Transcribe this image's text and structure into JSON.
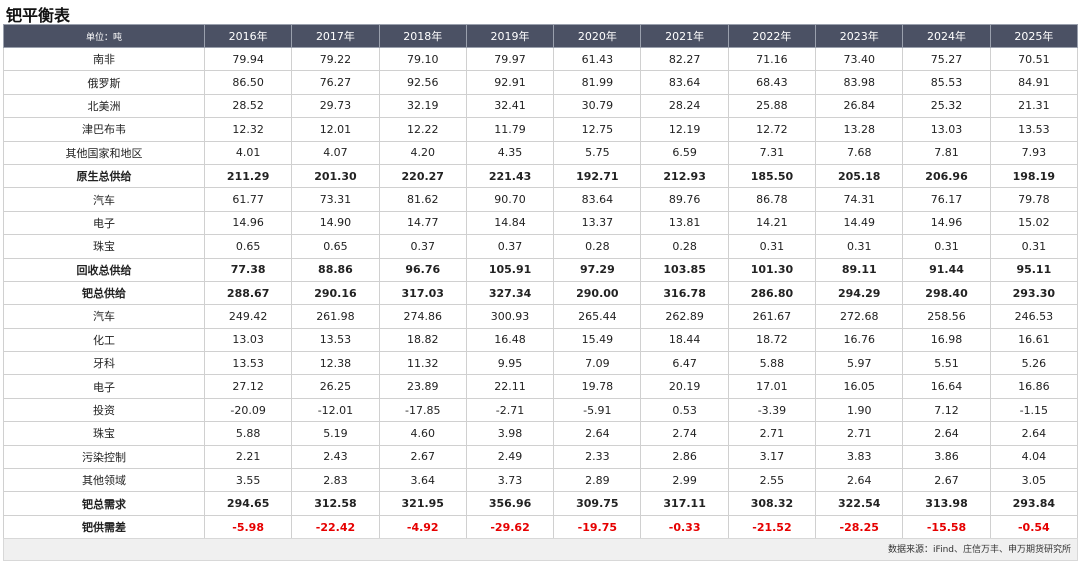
{
  "header": {
    "title": "钯平衡表"
  },
  "table": {
    "header": [
      "单位：吨",
      "2016年",
      "2017年",
      "2018年",
      "2019年",
      "2020年",
      "2021年",
      "2022年",
      "2023年",
      "2024年",
      "2025年"
    ],
    "rows": [
      {
        "label": "南非",
        "values": [
          "79.94",
          "79.22",
          "79.10",
          "79.97",
          "61.43",
          "82.27",
          "71.16",
          "73.40",
          "75.27",
          "70.51"
        ]
      },
      {
        "label": "俄罗斯",
        "values": [
          "86.50",
          "76.27",
          "92.56",
          "92.91",
          "81.99",
          "83.64",
          "68.43",
          "83.98",
          "85.53",
          "84.91"
        ]
      },
      {
        "label": "北美洲",
        "values": [
          "28.52",
          "29.73",
          "32.19",
          "32.41",
          "30.79",
          "28.24",
          "25.88",
          "26.84",
          "25.32",
          "21.31"
        ]
      },
      {
        "label": "津巴布韦",
        "values": [
          "12.32",
          "12.01",
          "12.22",
          "11.79",
          "12.75",
          "12.19",
          "12.72",
          "13.28",
          "13.03",
          "13.53"
        ]
      },
      {
        "label": "其他国家和地区",
        "values": [
          "4.01",
          "4.07",
          "4.20",
          "4.35",
          "5.75",
          "6.59",
          "7.31",
          "7.68",
          "7.81",
          "7.93"
        ]
      },
      {
        "label": "原生总供给",
        "bold": true,
        "values": [
          "211.29",
          "201.30",
          "220.27",
          "221.43",
          "192.71",
          "212.93",
          "185.50",
          "205.18",
          "206.96",
          "198.19"
        ]
      },
      {
        "label": "汽车",
        "values": [
          "61.77",
          "73.31",
          "81.62",
          "90.70",
          "83.64",
          "89.76",
          "86.78",
          "74.31",
          "76.17",
          "79.78"
        ]
      },
      {
        "label": "电子",
        "values": [
          "14.96",
          "14.90",
          "14.77",
          "14.84",
          "13.37",
          "13.81",
          "14.21",
          "14.49",
          "14.96",
          "15.02"
        ]
      },
      {
        "label": "珠宝",
        "values": [
          "0.65",
          "0.65",
          "0.37",
          "0.37",
          "0.28",
          "0.28",
          "0.31",
          "0.31",
          "0.31",
          "0.31"
        ]
      },
      {
        "label": "回收总供给",
        "bold": true,
        "values": [
          "77.38",
          "88.86",
          "96.76",
          "105.91",
          "97.29",
          "103.85",
          "101.30",
          "89.11",
          "91.44",
          "95.11"
        ]
      },
      {
        "label": "钯总供给",
        "bold": true,
        "values": [
          "288.67",
          "290.16",
          "317.03",
          "327.34",
          "290.00",
          "316.78",
          "286.80",
          "294.29",
          "298.40",
          "293.30"
        ]
      },
      {
        "label": "汽车",
        "values": [
          "249.42",
          "261.98",
          "274.86",
          "300.93",
          "265.44",
          "262.89",
          "261.67",
          "272.68",
          "258.56",
          "246.53"
        ]
      },
      {
        "label": "化工",
        "values": [
          "13.03",
          "13.53",
          "18.82",
          "16.48",
          "15.49",
          "18.44",
          "18.72",
          "16.76",
          "16.98",
          "16.61"
        ]
      },
      {
        "label": "牙科",
        "values": [
          "13.53",
          "12.38",
          "11.32",
          "9.95",
          "7.09",
          "6.47",
          "5.88",
          "5.97",
          "5.51",
          "5.26"
        ]
      },
      {
        "label": "电子",
        "values": [
          "27.12",
          "26.25",
          "23.89",
          "22.11",
          "19.78",
          "20.19",
          "17.01",
          "16.05",
          "16.64",
          "16.86"
        ]
      },
      {
        "label": "投资",
        "values": [
          "-20.09",
          "-12.01",
          "-17.85",
          "-2.71",
          "-5.91",
          "0.53",
          "-3.39",
          "1.90",
          "7.12",
          "-1.15"
        ]
      },
      {
        "label": "珠宝",
        "values": [
          "5.88",
          "5.19",
          "4.60",
          "3.98",
          "2.64",
          "2.74",
          "2.71",
          "2.71",
          "2.64",
          "2.64"
        ]
      },
      {
        "label": "污染控制",
        "values": [
          "2.21",
          "2.43",
          "2.67",
          "2.49",
          "2.33",
          "2.86",
          "3.17",
          "3.83",
          "3.86",
          "4.04"
        ]
      },
      {
        "label": "其他领域",
        "values": [
          "3.55",
          "2.83",
          "3.64",
          "3.73",
          "2.89",
          "2.99",
          "2.55",
          "2.64",
          "2.67",
          "3.05"
        ]
      },
      {
        "label": "钯总需求",
        "bold": true,
        "values": [
          "294.65",
          "312.58",
          "321.95",
          "356.96",
          "309.75",
          "317.11",
          "308.32",
          "322.54",
          "313.98",
          "293.84"
        ]
      },
      {
        "label": "钯供需差",
        "bold": true,
        "color": "#e60000",
        "values": [
          "-5.98",
          "-22.42",
          "-4.92",
          "-29.62",
          "-19.75",
          "-0.33",
          "-21.52",
          "-28.25",
          "-15.58",
          "-0.54"
        ]
      }
    ]
  },
  "footer": {
    "source": "数据来源：iFind、庄信万丰、申万期货研究所"
  }
}
